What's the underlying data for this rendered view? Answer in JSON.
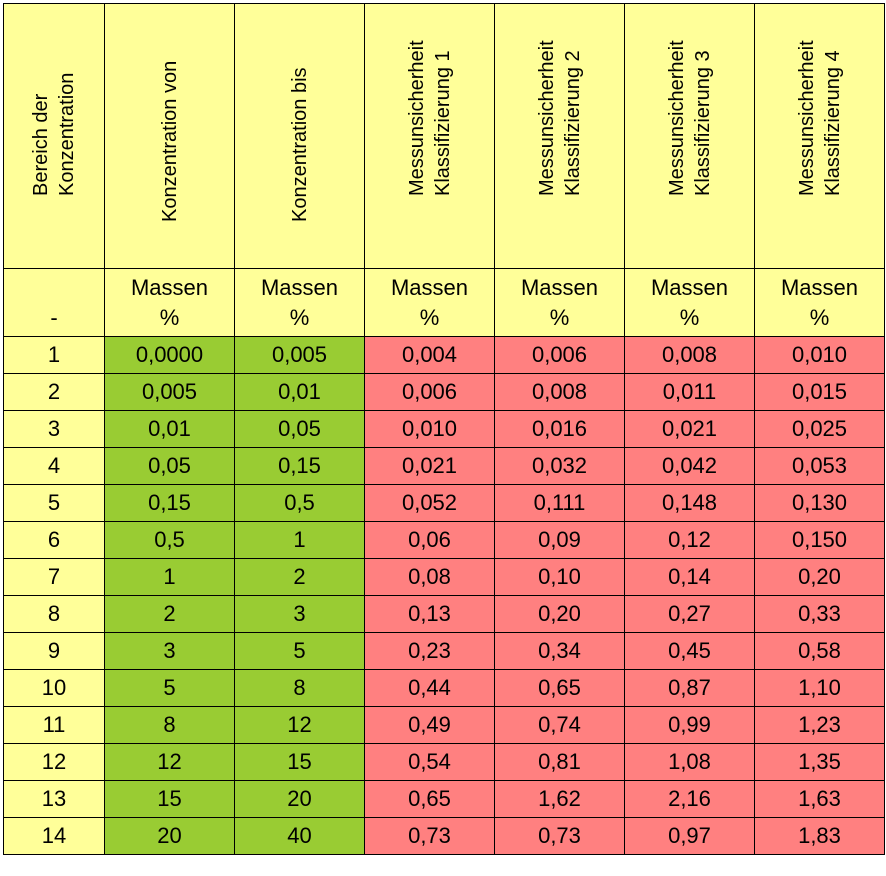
{
  "headers": [
    [
      "Bereich der",
      "Konzentration"
    ],
    [
      "Konzentration von"
    ],
    [
      "Konzentration bis"
    ],
    [
      "Messunsicherheit",
      "Klassifizierung 1"
    ],
    [
      "Messunsicherheit",
      "Klassifizierung 2"
    ],
    [
      "Messunsicherheit",
      "Klassifizierung 3"
    ],
    [
      "Messunsicherheit",
      "Klassifizierung 4"
    ]
  ],
  "units": [
    [
      "-"
    ],
    [
      "Massen",
      "%"
    ],
    [
      "Massen",
      "%"
    ],
    [
      "Massen",
      "%"
    ],
    [
      "Massen",
      "%"
    ],
    [
      "Massen",
      "%"
    ],
    [
      "Massen",
      "%"
    ]
  ],
  "rows": [
    [
      "1",
      "0,0000",
      "0,005",
      "0,004",
      "0,006",
      "0,008",
      "0,010"
    ],
    [
      "2",
      "0,005",
      "0,01",
      "0,006",
      "0,008",
      "0,011",
      "0,015"
    ],
    [
      "3",
      "0,01",
      "0,05",
      "0,010",
      "0,016",
      "0,021",
      "0,025"
    ],
    [
      "4",
      "0,05",
      "0,15",
      "0,021",
      "0,032",
      "0,042",
      "0,053"
    ],
    [
      "5",
      "0,15",
      "0,5",
      "0,052",
      "0,111",
      "0,148",
      "0,130"
    ],
    [
      "6",
      "0,5",
      "1",
      "0,06",
      "0,09",
      "0,12",
      "0,150"
    ],
    [
      "7",
      "1",
      "2",
      "0,08",
      "0,10",
      "0,14",
      "0,20"
    ],
    [
      "8",
      "2",
      "3",
      "0,13",
      "0,20",
      "0,27",
      "0,33"
    ],
    [
      "9",
      "3",
      "5",
      "0,23",
      "0,34",
      "0,45",
      "0,58"
    ],
    [
      "10",
      "5",
      "8",
      "0,44",
      "0,65",
      "0,87",
      "1,10"
    ],
    [
      "11",
      "8",
      "12",
      "0,49",
      "0,74",
      "0,99",
      "1,23"
    ],
    [
      "12",
      "12",
      "15",
      "0,54",
      "0,81",
      "1,08",
      "1,35"
    ],
    [
      "13",
      "15",
      "20",
      "0,65",
      "1,62",
      "2,16",
      "1,63"
    ],
    [
      "14",
      "20",
      "40",
      "0,73",
      "0,73",
      "0,97",
      "1,83"
    ]
  ],
  "colors": {
    "header_bg": "#ffff99",
    "range_bg": "#99cc33",
    "uncertainty_bg": "#ff8080"
  }
}
